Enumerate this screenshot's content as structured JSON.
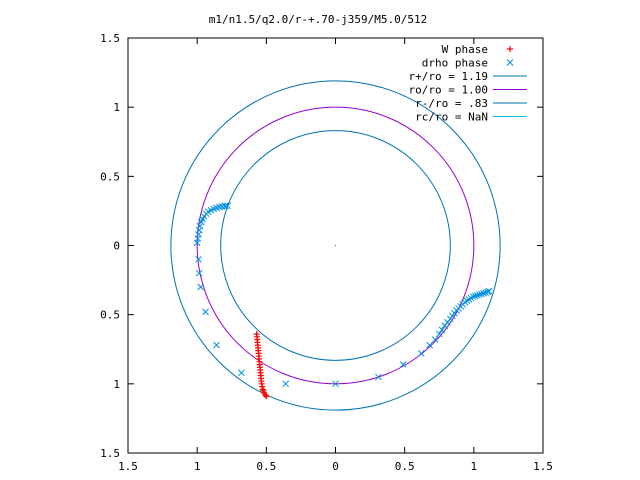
{
  "chart_data": {
    "type": "scatter",
    "title": "m1/n1.5/q2.0/r-+.70-j359/M5.0/512",
    "xlabel": "",
    "ylabel": "",
    "xlim": [
      -1.5,
      1.5
    ],
    "ylim": [
      -1.5,
      1.5
    ],
    "grid": false,
    "legend_position": "top-right",
    "x_tick_labels": [
      "1.5",
      "1",
      "0.5",
      "0",
      "0.5",
      "1",
      "1.5"
    ],
    "y_tick_labels": [
      "1.5",
      "1",
      "0.5",
      "0",
      "0.5",
      "1",
      "1.5"
    ],
    "ticks": [
      -1.5,
      -1,
      -0.5,
      0,
      0.5,
      1,
      1.5
    ],
    "circles": [
      {
        "name": "r+/ro = 1.19",
        "radius": 1.19,
        "color": "#0072b2"
      },
      {
        "name": "ro/ro = 1.00",
        "radius": 1.0,
        "color": "#9400d3"
      },
      {
        "name": "r-/ro = .83",
        "radius": 0.83,
        "color": "#0072b2"
      },
      {
        "name": "rc/ro = NaN",
        "radius": null,
        "color": "#00c0e0"
      }
    ],
    "series": [
      {
        "name": "W phase",
        "marker": "plus",
        "color": "#ff0000",
        "x": [
          -0.57,
          -0.568,
          -0.566,
          -0.564,
          -0.562,
          -0.56,
          -0.558,
          -0.556,
          -0.554,
          -0.552,
          -0.55,
          -0.548,
          -0.546,
          -0.544,
          -0.542,
          -0.54,
          -0.538,
          -0.536,
          -0.533,
          -0.53,
          -0.526,
          -0.522,
          -0.516,
          -0.508,
          -0.5
        ],
        "y": [
          -0.64,
          -0.66,
          -0.68,
          -0.7,
          -0.72,
          -0.74,
          -0.76,
          -0.78,
          -0.8,
          -0.82,
          -0.84,
          -0.86,
          -0.88,
          -0.9,
          -0.92,
          -0.94,
          -0.96,
          -0.98,
          -1.0,
          -1.02,
          -1.04,
          -1.05,
          -1.065,
          -1.08,
          -1.09
        ]
      },
      {
        "name": "drho phase",
        "marker": "cross",
        "color": "#0090e0",
        "x": [
          -1.0,
          -0.995,
          -0.99,
          -0.985,
          -0.98,
          -0.97,
          -0.96,
          -0.95,
          -0.935,
          -0.92,
          -0.9,
          -0.88,
          -0.86,
          -0.84,
          -0.82,
          -0.8,
          -0.78,
          -0.795,
          -0.99,
          -0.985,
          -0.975,
          -0.94,
          -0.86,
          -0.68,
          -0.36,
          0.0,
          0.31,
          0.49,
          0.62,
          0.68,
          0.72,
          0.75,
          0.77,
          0.79,
          0.81,
          0.83,
          0.845,
          0.86,
          0.875,
          0.89,
          0.905,
          0.92,
          0.935,
          0.95,
          0.965,
          0.98,
          0.995,
          1.01,
          1.025,
          1.04,
          1.055,
          1.07,
          1.085,
          1.1,
          1.11
        ],
        "y": [
          0.02,
          0.05,
          0.08,
          0.11,
          0.14,
          0.17,
          0.19,
          0.21,
          0.23,
          0.245,
          0.255,
          0.265,
          0.272,
          0.278,
          0.282,
          0.285,
          0.287,
          0.285,
          -0.1,
          -0.2,
          -0.3,
          -0.48,
          -0.72,
          -0.92,
          -1.0,
          -1.0,
          -0.95,
          -0.86,
          -0.78,
          -0.72,
          -0.68,
          -0.64,
          -0.61,
          -0.58,
          -0.555,
          -0.53,
          -0.51,
          -0.49,
          -0.47,
          -0.455,
          -0.44,
          -0.425,
          -0.41,
          -0.4,
          -0.39,
          -0.38,
          -0.37,
          -0.365,
          -0.36,
          -0.355,
          -0.35,
          -0.345,
          -0.34,
          -0.335,
          -0.33
        ]
      }
    ]
  }
}
